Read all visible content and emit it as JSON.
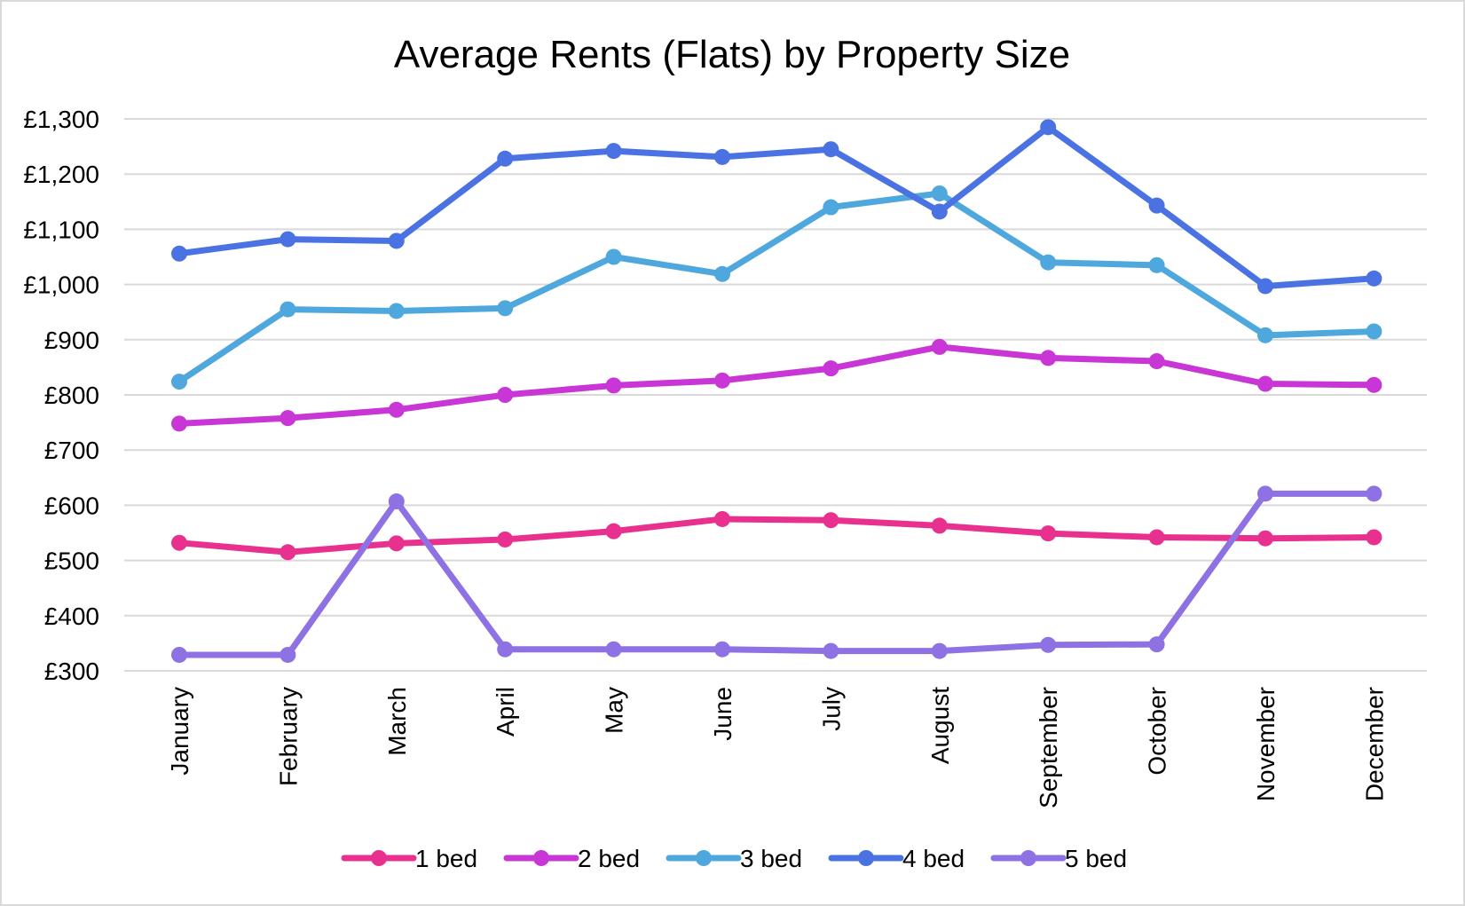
{
  "chart_data": {
    "type": "line",
    "title": "Average Rents (Flats) by Property Size",
    "xlabel": "",
    "ylabel": "",
    "categories": [
      "January",
      "February",
      "March",
      "April",
      "May",
      "June",
      "July",
      "August",
      "September",
      "October",
      "November",
      "December"
    ],
    "y_ticks": [
      "£1,300",
      "£1,200",
      "£1,100",
      "£1,000",
      "£900",
      "£800",
      "£700",
      "£600",
      "£500",
      "£400",
      "£300"
    ],
    "ylim": [
      300,
      1300
    ],
    "grid": true,
    "legend": "bottom",
    "series": [
      {
        "name": "1 bed",
        "color": "#e8318f",
        "values": [
          532,
          515,
          531,
          538,
          553,
          575,
          573,
          563,
          549,
          542,
          540,
          542
        ]
      },
      {
        "name": "2 bed",
        "color": "#c936d6",
        "values": [
          748,
          758,
          773,
          800,
          817,
          826,
          848,
          887,
          867,
          861,
          820,
          818
        ]
      },
      {
        "name": "3 bed",
        "color": "#4fa8dd",
        "values": [
          824,
          955,
          952,
          957,
          1050,
          1019,
          1140,
          1165,
          1040,
          1035,
          908,
          915
        ]
      },
      {
        "name": "4 bed",
        "color": "#4a72e3",
        "values": [
          1056,
          1082,
          1079,
          1228,
          1242,
          1231,
          1245,
          1132,
          1285,
          1143,
          997,
          1011
        ]
      },
      {
        "name": "5 bed",
        "color": "#8e72e3",
        "values": [
          329,
          329,
          607,
          339,
          339,
          339,
          336,
          336,
          347,
          348,
          621,
          621
        ]
      }
    ]
  }
}
